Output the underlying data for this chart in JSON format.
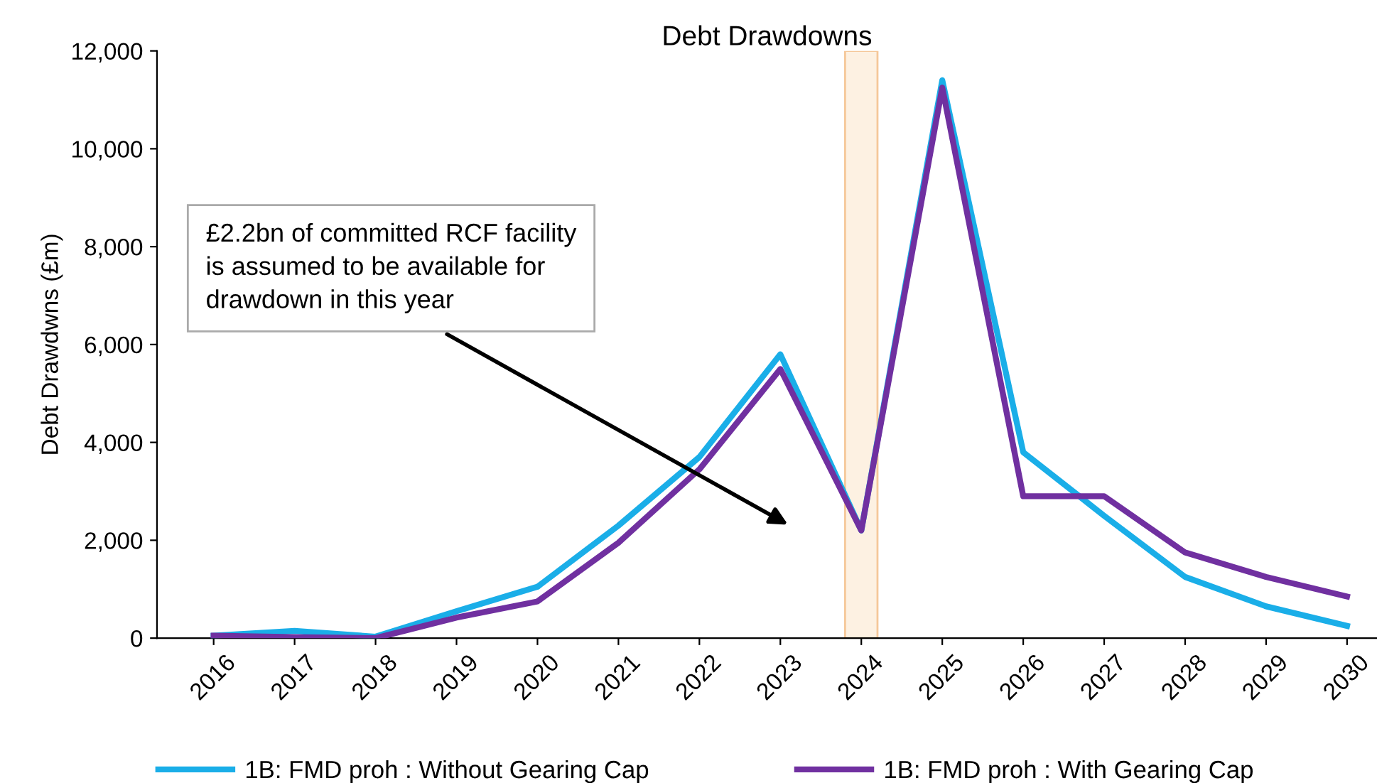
{
  "chart_data": {
    "type": "line",
    "title": "Debt Drawdowns",
    "ylabel": "Debt Drawdwns (£m)",
    "x": [
      2016,
      2017,
      2018,
      2019,
      2020,
      2021,
      2022,
      2023,
      2024,
      2025,
      2026,
      2027,
      2028,
      2029,
      2030
    ],
    "series": [
      {
        "name": "1B: FMD proh : Without Gearing Cap",
        "color": "#1aaee8",
        "values": [
          50,
          150,
          30,
          550,
          1050,
          2300,
          3700,
          5800,
          2200,
          11400,
          3800,
          2500,
          1250,
          650,
          250
        ]
      },
      {
        "name": "1B: FMD proh : With Gearing Cap",
        "color": "#7030a0",
        "values": [
          50,
          20,
          0,
          420,
          750,
          1950,
          3450,
          5500,
          2200,
          11250,
          2900,
          2900,
          1750,
          1250,
          850
        ]
      }
    ],
    "xlim": [
      2015.3,
      2030.37
    ],
    "xticks": [
      2016,
      2017,
      2018,
      2019,
      2020,
      2021,
      2022,
      2023,
      2024,
      2025,
      2026,
      2027,
      2028,
      2029,
      2030
    ],
    "ylim": [
      0,
      12000
    ],
    "yticks": [
      0,
      {
        "value": 2000,
        "label": "2,000"
      },
      {
        "value": 4000,
        "label": "4,000"
      },
      {
        "value": 6000,
        "label": "6,000"
      },
      {
        "value": 8000,
        "label": "8,000"
      },
      {
        "value": 10000,
        "label": "10,000"
      },
      {
        "value": 12000,
        "label": "12,000"
      }
    ],
    "bands": [
      {
        "axis": "x",
        "from": 2023.8,
        "to": 2024.2,
        "color": "#fdf1e2"
      }
    ],
    "annotations": [
      "£2.2bn of committed RCF facility\nis assumed to be available for\ndrawdown in this year"
    ],
    "grid": false,
    "legend": "bottom",
    "marker": "none",
    "line_style": "solid"
  }
}
